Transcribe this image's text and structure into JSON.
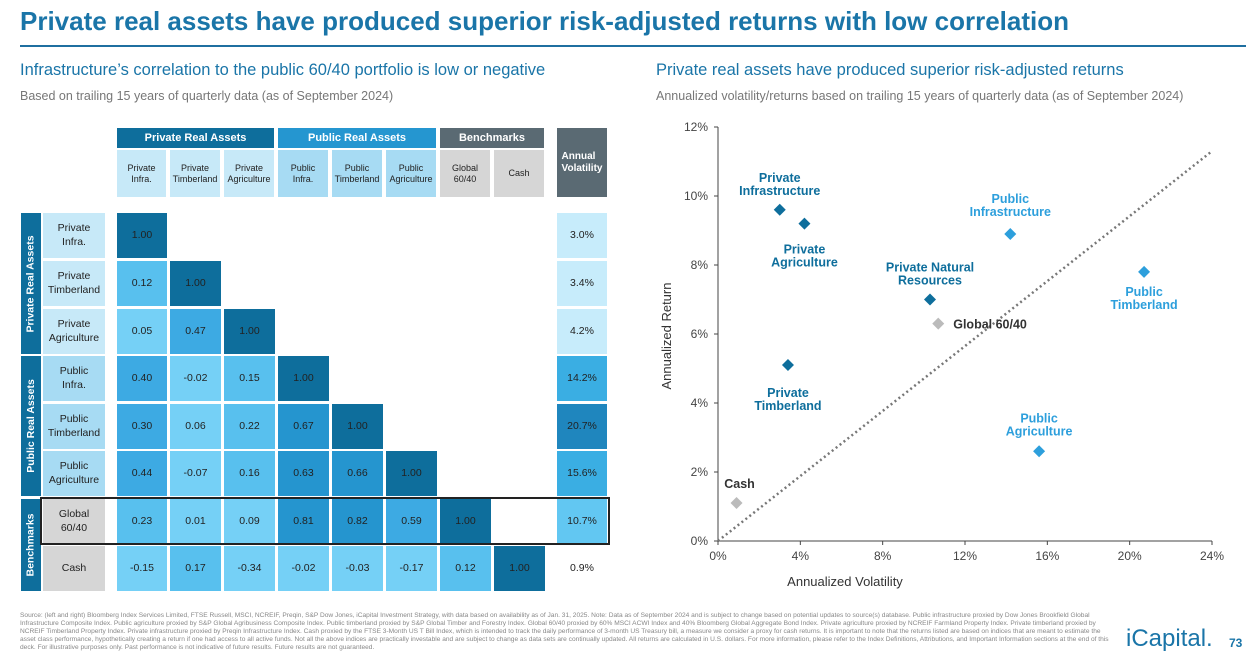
{
  "title": "Private real assets have produced superior risk-adjusted returns with low correlation",
  "left": {
    "subtitle": "Infrastructure’s correlation to the public 60/40 portfolio is low or negative",
    "note": "Based on trailing 15 years of quarterly data (as of September 2024)"
  },
  "right": {
    "subtitle": "Private real assets have produced superior risk-adjusted returns",
    "note": "Annualized volatility/returns based on trailing 15 years of quarterly data (as of September 2024)"
  },
  "colors": {
    "dark": "#0e6e9c",
    "mid": "#2596d0",
    "light": "#a7dbf3",
    "lighter": "#c7e9f8",
    "grey_cell": "#d6d6d6",
    "private_marker": "#0e6e9c",
    "public_marker": "#2d9fdc",
    "bench_marker": "#bbbbbb"
  },
  "chart_data": [
    {
      "type": "table",
      "group_headers": [
        "Private Real Assets",
        "Public Real Assets",
        "Benchmarks"
      ],
      "columns": [
        "Private\nInfra.",
        "Private\nTimberland",
        "Private\nAgriculture",
        "Public\nInfra.",
        "Public\nTimberland",
        "Public\nAgriculture",
        "Global\n60/40",
        "Cash"
      ],
      "vol_header": "Annual\nVolatility",
      "row_groups": [
        "Private Real Assets",
        "Public Real Assets",
        "Benchmarks"
      ],
      "rows": [
        {
          "label": "Private\nInfra.",
          "values": [
            "1.00"
          ],
          "vol": "3.0%"
        },
        {
          "label": "Private\nTimberland",
          "values": [
            "0.12",
            "1.00"
          ],
          "vol": "3.4%"
        },
        {
          "label": "Private\nAgriculture",
          "values": [
            "0.05",
            "0.47",
            "1.00"
          ],
          "vol": "4.2%"
        },
        {
          "label": "Public\nInfra.",
          "values": [
            "0.40",
            "-0.02",
            "0.15",
            "1.00"
          ],
          "vol": "14.2%"
        },
        {
          "label": "Public\nTimberland",
          "values": [
            "0.30",
            "0.06",
            "0.22",
            "0.67",
            "1.00"
          ],
          "vol": "20.7%"
        },
        {
          "label": "Public\nAgriculture",
          "values": [
            "0.44",
            "-0.07",
            "0.16",
            "0.63",
            "0.66",
            "1.00"
          ],
          "vol": "15.6%"
        },
        {
          "label": "Global\n60/40",
          "values": [
            "0.23",
            "0.01",
            "0.09",
            "0.81",
            "0.82",
            "0.59",
            "1.00"
          ],
          "vol": "10.7%"
        },
        {
          "label": "Cash",
          "values": [
            "-0.15",
            "0.17",
            "-0.34",
            "-0.02",
            "-0.03",
            "-0.17",
            "0.12",
            "1.00"
          ],
          "vol": "0.9%"
        }
      ]
    },
    {
      "type": "scatter",
      "xlabel": "Annualized Volatility",
      "ylabel": "Annualized Return",
      "xlim": [
        0,
        24
      ],
      "ylim": [
        0,
        12
      ],
      "xticks": [
        "0%",
        "4%",
        "8%",
        "12%",
        "16%",
        "20%",
        "24%"
      ],
      "yticks": [
        "0%",
        "2%",
        "4%",
        "6%",
        "8%",
        "10%",
        "12%"
      ],
      "reference_line": {
        "x": [
          0,
          24
        ],
        "y": [
          0,
          11.3
        ]
      },
      "points": [
        {
          "label": "Private\nInfrastructure",
          "x": 3.0,
          "y": 9.6,
          "group": "private"
        },
        {
          "label": "Private\nAgriculture",
          "x": 4.2,
          "y": 9.2,
          "group": "private"
        },
        {
          "label": "Private Natural\nResources",
          "x": 10.3,
          "y": 7.0,
          "group": "private"
        },
        {
          "label": "Private\nTimberland",
          "x": 3.4,
          "y": 5.1,
          "group": "private"
        },
        {
          "label": "Public\nInfrastructure",
          "x": 14.2,
          "y": 8.9,
          "group": "public"
        },
        {
          "label": "Public\nTimberland",
          "x": 20.7,
          "y": 7.8,
          "group": "public"
        },
        {
          "label": "Public\nAgriculture",
          "x": 15.6,
          "y": 2.6,
          "group": "public"
        },
        {
          "label": "Global 60/40",
          "x": 10.7,
          "y": 6.3,
          "group": "benchmark"
        },
        {
          "label": "Cash",
          "x": 0.9,
          "y": 1.1,
          "group": "benchmark"
        }
      ]
    }
  ],
  "source": "Source: (left and right) Bloomberg Index Services Limited, FTSE Russell, MSCI, NCREIF, Preqin, S&P Dow Jones, iCapital Investment Strategy, with data based on availability as of Jan. 31, 2025. Note: Data as of September 2024 and is subject to change based on potential updates to source(s) database. Public infrastructure proxied by Dow Jones Brookfield Global Infrastructure Composite Index. Public agriculture proxied by S&P Global Agribusiness Composite Index. Public timberland proxied by S&P Global Timber and Forestry Index. Global 60/40 proxied by 60% MSCI ACWI Index and 40% Bloomberg Global Aggregate Bond Index. Private agriculture proxied by NCREIF Farmland Property Index. Private timberland proxied by NCREIF Timberland Property Index. Private infrastructure proxied by Preqin Infrastructure Index. Cash proxied by the FTSE 3-Month US T Bill Index, which is intended to track the daily performance of 3-month US Treasury bill, a measure we consider a proxy for cash returns. It is important to note that the returns listed are based on indices that are meant to estimate the asset class performance, hypothetically creating a return if one had access to all active funds. Not all the above indices are practically investable and are subject to change as data sets are continually updated. All returns are calculated in U.S. dollars. For more information, please refer to the Index Definitions, Attributions, and Important Information sections at the end of this deck. For illustrative purposes only. Past performance is not indicative of future results. Future results are not guaranteed.",
  "logo": "iCapital.",
  "page_number": "73"
}
